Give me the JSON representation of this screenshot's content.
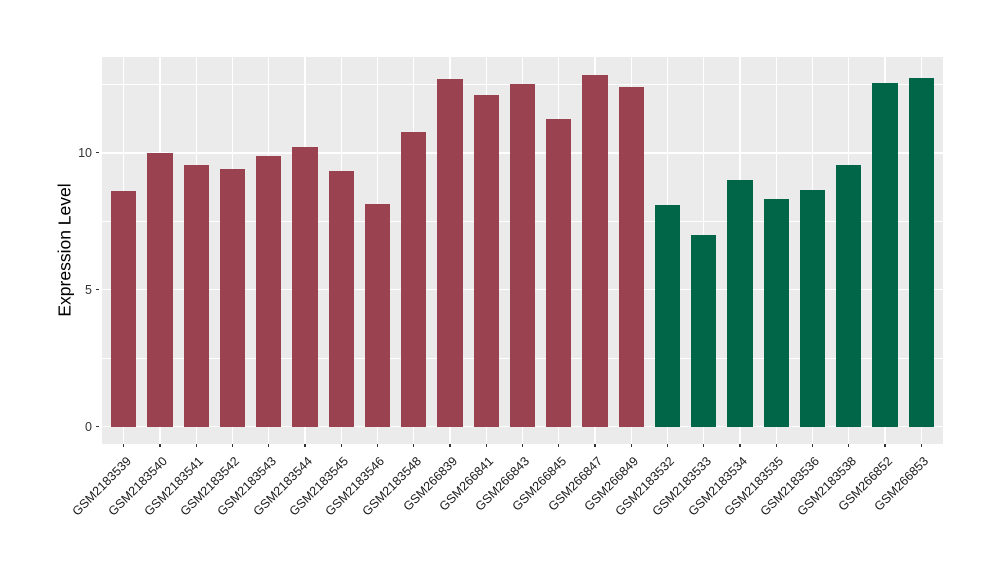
{
  "chart_data": {
    "type": "bar",
    "title": "",
    "xlabel": "",
    "ylabel": "Expression Level",
    "categories": [
      "GSM2183539",
      "GSM2183540",
      "GSM2183541",
      "GSM2183542",
      "GSM2183543",
      "GSM2183544",
      "GSM2183545",
      "GSM2183546",
      "GSM2183548",
      "GSM266839",
      "GSM266841",
      "GSM266843",
      "GSM266845",
      "GSM266847",
      "GSM266849",
      "GSM2183532",
      "GSM2183533",
      "GSM2183534",
      "GSM2183535",
      "GSM2183536",
      "GSM2183538",
      "GSM266852",
      "GSM266853"
    ],
    "values": [
      8.6,
      10.0,
      9.55,
      9.4,
      9.9,
      10.2,
      9.35,
      8.15,
      10.75,
      12.7,
      12.1,
      12.5,
      11.25,
      12.85,
      12.4,
      8.1,
      7.0,
      9.0,
      8.3,
      8.65,
      9.55,
      12.55,
      12.75
    ],
    "bar_colors": [
      "#9A4250",
      "#9A4250",
      "#9A4250",
      "#9A4250",
      "#9A4250",
      "#9A4250",
      "#9A4250",
      "#9A4250",
      "#9A4250",
      "#9A4250",
      "#9A4250",
      "#9A4250",
      "#9A4250",
      "#9A4250",
      "#9A4250",
      "#006647",
      "#006647",
      "#006647",
      "#006647",
      "#006647",
      "#006647",
      "#006647",
      "#006647"
    ],
    "ylim": [
      -0.63,
      13.5
    ],
    "y_major_ticks": [
      0,
      5,
      10
    ],
    "y_tick_labels": [
      "0",
      "5",
      "10"
    ],
    "y_minor_ticks": [
      2.5,
      7.5,
      12.5
    ],
    "grid": "on",
    "legend": "none",
    "x_label_angle": 45,
    "bar_width_fraction": 0.7,
    "colors": {
      "group_left": "#9A4250",
      "group_right": "#006647",
      "panel_background": "#EBEBEB",
      "gridline": "#FFFFFF",
      "axis_text": "#333333",
      "axis_title": "#000000"
    }
  }
}
